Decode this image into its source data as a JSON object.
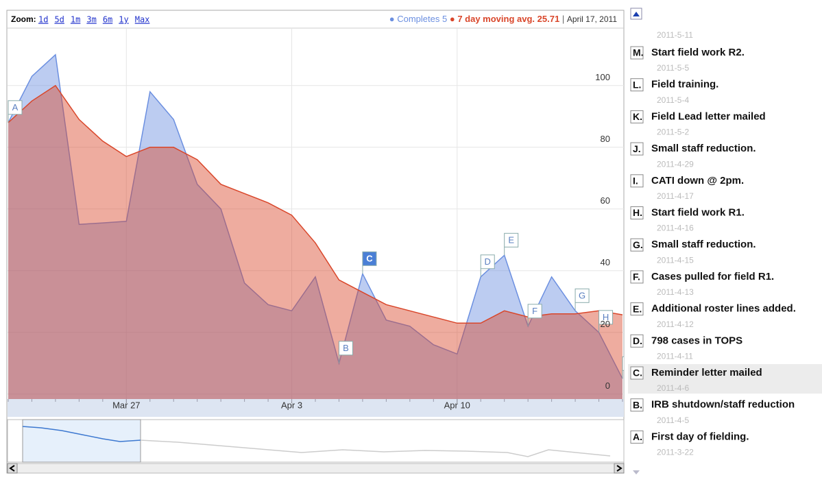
{
  "chart_data": {
    "type": "area",
    "zoom_label": "Zoom:",
    "zoom_options": [
      "1d",
      "5d",
      "1m",
      "3m",
      "6m",
      "1y",
      "Max"
    ],
    "legend_date": "April 17, 2011",
    "x": [
      "2011-3-22",
      "2011-3-23",
      "2011-3-24",
      "2011-3-25",
      "2011-3-26",
      "2011-3-27",
      "2011-3-28",
      "2011-3-29",
      "2011-3-30",
      "2011-3-31",
      "2011-4-1",
      "2011-4-2",
      "2011-4-3",
      "2011-4-4",
      "2011-4-5",
      "2011-4-6",
      "2011-4-7",
      "2011-4-8",
      "2011-4-9",
      "2011-4-10",
      "2011-4-11",
      "2011-4-12",
      "2011-4-13",
      "2011-4-14",
      "2011-4-15",
      "2011-4-16",
      "2011-4-17"
    ],
    "xlim": [
      "2011-3-22",
      "2011-4-17"
    ],
    "xticks": [
      {
        "value": "2011-3-27",
        "label": "Mar 27"
      },
      {
        "value": "2011-4-3",
        "label": "Apr 3"
      },
      {
        "value": "2011-4-10",
        "label": "Apr 10"
      }
    ],
    "ylim": [
      -1.6,
      118.4
    ],
    "yticks": [
      0,
      20,
      40,
      60,
      80,
      100
    ],
    "grid": true,
    "series": [
      {
        "name": "Completes",
        "color": "#6b8fe0",
        "values": [
          88,
          103,
          110,
          55,
          55.5,
          56,
          98,
          89,
          68,
          60,
          36,
          29,
          27,
          38,
          10,
          39,
          24,
          22,
          16,
          13,
          38,
          45,
          22,
          38,
          27,
          20,
          5
        ]
      },
      {
        "name": "7 day moving avg.",
        "color": "#d9462a",
        "values": [
          88,
          95,
          100,
          89,
          82,
          77,
          80,
          80,
          76,
          68,
          65,
          62,
          58,
          49,
          37,
          33,
          29,
          27,
          25,
          23,
          23,
          27,
          25,
          26,
          26,
          27,
          25.71
        ]
      }
    ],
    "highlighted": "C",
    "annotations": [
      {
        "date": "2011-5-11"
      },
      {
        "letter": "M.",
        "text": "Start field work R2.",
        "date": "2011-5-5"
      },
      {
        "letter": "L.",
        "text": "Field training.",
        "date": "2011-5-4"
      },
      {
        "letter": "K.",
        "text": "Field Lead letter mailed",
        "date": "2011-5-2"
      },
      {
        "letter": "J.",
        "text": "Small staff reduction.",
        "date": "2011-4-29"
      },
      {
        "letter": "I.",
        "text": "CATI down @ 2pm.",
        "date": "2011-4-17"
      },
      {
        "letter": "H.",
        "text": "Start field work R1.",
        "date": "2011-4-16"
      },
      {
        "letter": "G.",
        "text": "Small staff reduction.",
        "date": "2011-4-15"
      },
      {
        "letter": "F.",
        "text": "Cases pulled for field R1.",
        "date": "2011-4-13"
      },
      {
        "letter": "E.",
        "text": "Additional roster lines added.",
        "date": "2011-4-12"
      },
      {
        "letter": "D.",
        "text": "798 cases in TOPS",
        "date": "2011-4-11"
      },
      {
        "letter": "C.",
        "text": "Reminder letter mailed",
        "date": "2011-4-6"
      },
      {
        "letter": "B.",
        "text": "IRB shutdown/staff reduction",
        "date": "2011-4-5"
      },
      {
        "letter": "A.",
        "text": "First day of fielding.",
        "date": "2011-3-22"
      }
    ]
  }
}
